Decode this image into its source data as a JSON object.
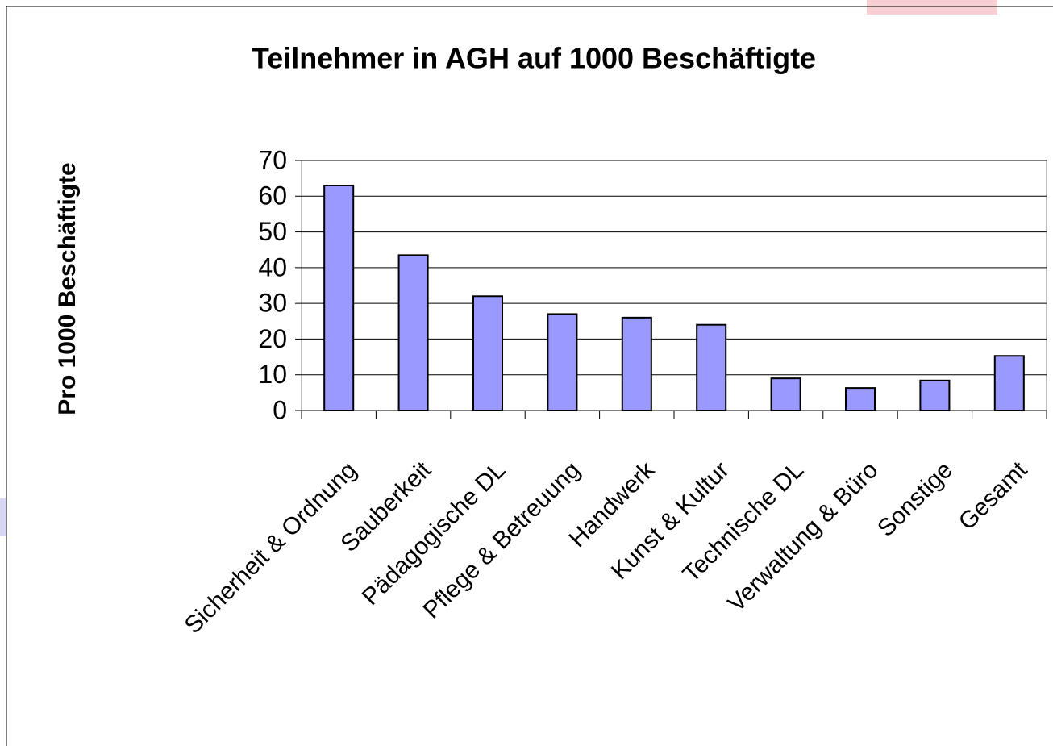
{
  "chart_data": {
    "type": "bar",
    "title": "Teilnehmer in AGH auf 1000 Beschäftigte",
    "y_label": "Pro 1000 Beschäftigte",
    "categories": [
      "Sicherheit & Ordnung",
      "Sauberkeit",
      "Pädagogische DL",
      "Pflege & Betreuung",
      "Handwerk",
      "Kunst & Kultur",
      "Technische DL",
      "Verwaltung & Büro",
      "Sonstige",
      "Gesamt"
    ],
    "values": [
      63,
      43.5,
      32,
      27,
      26,
      24,
      9,
      6.3,
      8.4,
      15.3
    ],
    "color": "#9999ff",
    "ylim": [
      0,
      70
    ],
    "yticks": [
      0,
      10,
      20,
      30,
      40,
      50,
      60,
      70
    ],
    "grid": true
  }
}
